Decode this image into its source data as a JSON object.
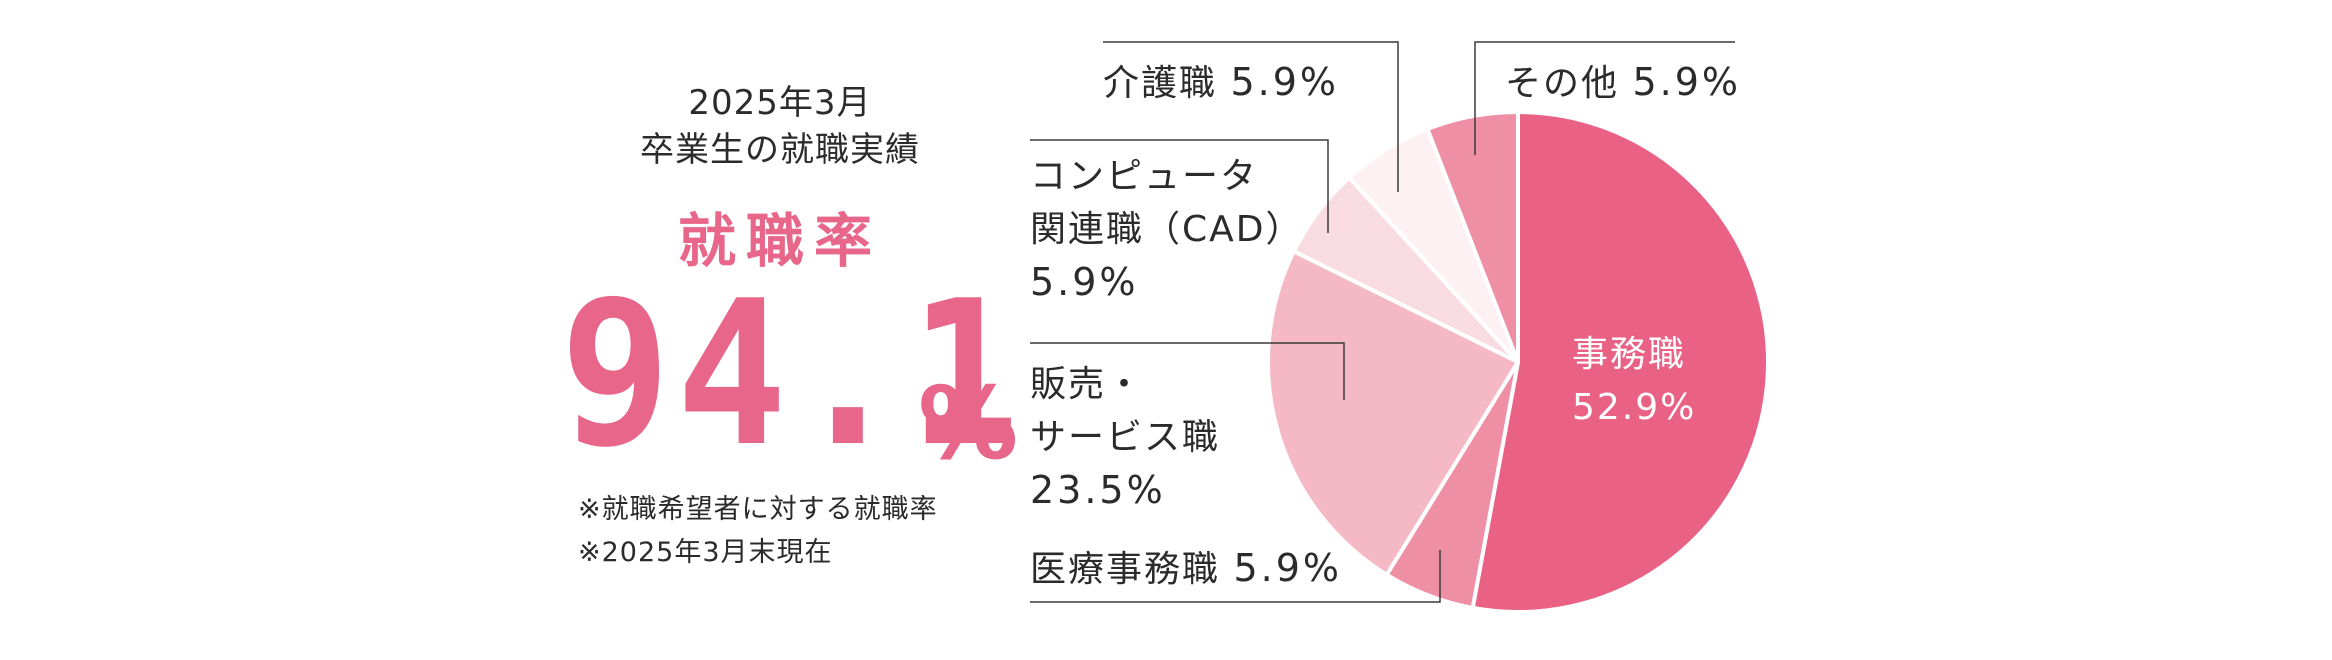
{
  "header": {
    "line1": "2025年3月",
    "line2": "卒業生の就職実績",
    "rate_label": "就職率"
  },
  "rate": {
    "value": "94.1",
    "unit": "%"
  },
  "notes": [
    "※就職希望者に対する就職率",
    "※2025年3月末現在"
  ],
  "labels": {
    "kaigo": {
      "name": "介護職",
      "value": "5.9%"
    },
    "sonota": {
      "name": "その他",
      "value": "5.9%"
    },
    "computer": {
      "line1": "コンピュータ",
      "line2": "関連職（CAD）",
      "value": "5.9%"
    },
    "hanbai": {
      "line1": "販売・",
      "line2": "サービス職",
      "value": "23.5%"
    },
    "iryo": {
      "name": "医療事務職",
      "value": "5.9%"
    },
    "jimu": {
      "name": "事務職",
      "value": "52.9%"
    }
  },
  "chart_data": {
    "type": "pie",
    "slices": [
      {
        "label": "事務職",
        "value": 52.9,
        "color": "#e96285"
      },
      {
        "label": "医療事務職",
        "value": 5.9,
        "color": "#ee8fa5"
      },
      {
        "label": "販売・サービス職",
        "value": 23.5,
        "color": "#f4b9c4"
      },
      {
        "label": "コンピュータ関連職（CAD）",
        "value": 5.9,
        "color": "#f9dce2"
      },
      {
        "label": "介護職",
        "value": 5.9,
        "color": "#fdf1f3"
      },
      {
        "label": "その他",
        "value": 5.9,
        "color": "#ee8fa5"
      }
    ]
  }
}
